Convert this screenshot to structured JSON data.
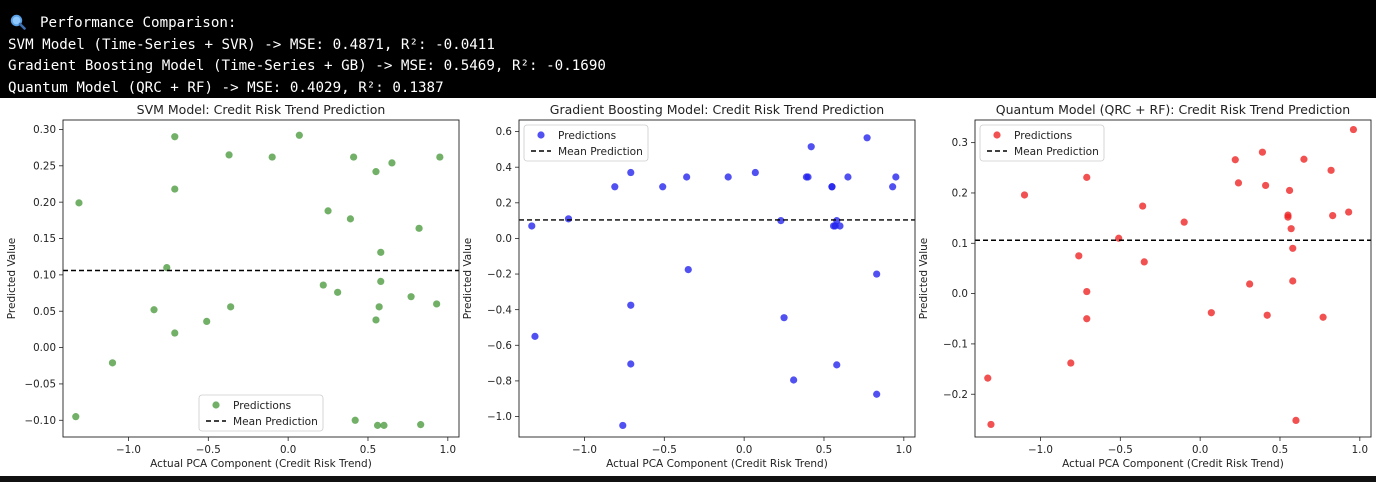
{
  "console": {
    "icon": "magnifier-icon",
    "lines": [
      "Performance Comparison:",
      "SVM Model (Time-Series + SVR) -> MSE: 0.4871, R²: -0.0411",
      "Gradient Boosting Model (Time-Series + GB) -> MSE: 0.5469, R²: -0.1690",
      "Quantum Model (QRC + RF) -> MSE: 0.4029, R²: 0.1387"
    ]
  },
  "chart_data": [
    {
      "type": "scatter",
      "title": "SVM Model: Credit Risk Trend Prediction",
      "xlabel": "Actual PCA Component (Credit Risk Trend)",
      "ylabel": "Predicted Value",
      "xlim": [
        -1.41,
        1.07
      ],
      "ylim": [
        -0.123,
        0.313
      ],
      "xticks": [
        -1.0,
        -0.5,
        0.0,
        0.5,
        1.0
      ],
      "xtick_labels": [
        "−1.0",
        "−0.5",
        "0.0",
        "0.5",
        "1.0"
      ],
      "yticks": [
        -0.1,
        -0.05,
        0.0,
        0.05,
        0.1,
        0.15,
        0.2,
        0.25,
        0.3
      ],
      "ytick_labels": [
        "−0.10",
        "−0.05",
        "0.00",
        "0.05",
        "0.10",
        "0.15",
        "0.20",
        "0.25",
        "0.30"
      ],
      "color": "#4a9a3d",
      "mean_line": 0.106,
      "legend": {
        "placement": "lower-center",
        "entries": [
          "Predictions",
          "Mean Prediction"
        ]
      },
      "points": [
        [
          -1.33,
          -0.095
        ],
        [
          -1.31,
          0.199
        ],
        [
          -1.1,
          -0.021
        ],
        [
          -0.84,
          0.052
        ],
        [
          -0.76,
          0.11
        ],
        [
          -0.71,
          0.29
        ],
        [
          -0.71,
          0.218
        ],
        [
          -0.71,
          0.02
        ],
        [
          -0.51,
          0.036
        ],
        [
          -0.37,
          0.265
        ],
        [
          -0.36,
          0.056
        ],
        [
          -0.1,
          0.262
        ],
        [
          0.07,
          0.292
        ],
        [
          0.22,
          0.086
        ],
        [
          0.25,
          0.188
        ],
        [
          0.31,
          0.076
        ],
        [
          0.39,
          0.177
        ],
        [
          0.41,
          0.262
        ],
        [
          0.42,
          -0.1
        ],
        [
          0.55,
          0.242
        ],
        [
          0.55,
          0.038
        ],
        [
          0.57,
          0.056
        ],
        [
          0.58,
          0.131
        ],
        [
          0.58,
          0.091
        ],
        [
          0.56,
          -0.107
        ],
        [
          0.6,
          -0.107
        ],
        [
          0.65,
          0.254
        ],
        [
          0.77,
          0.07
        ],
        [
          0.82,
          0.164
        ],
        [
          0.83,
          -0.106
        ],
        [
          0.93,
          0.06
        ],
        [
          0.95,
          0.262
        ]
      ]
    },
    {
      "type": "scatter",
      "title": "Gradient Boosting Model: Credit Risk Trend Prediction",
      "xlabel": "Actual PCA Component (Credit Risk Trend)",
      "ylabel": "Predicted Value",
      "xlim": [
        -1.41,
        1.07
      ],
      "ylim": [
        -1.115,
        0.665
      ],
      "xticks": [
        -1.0,
        -0.5,
        0.0,
        0.5,
        1.0
      ],
      "xtick_labels": [
        "−1.0",
        "−0.5",
        "0.0",
        "0.5",
        "1.0"
      ],
      "yticks": [
        -1.0,
        -0.8,
        -0.6,
        -0.4,
        -0.2,
        0.0,
        0.2,
        0.4,
        0.6
      ],
      "ytick_labels": [
        "−1.0",
        "−0.8",
        "−0.6",
        "−0.4",
        "−0.2",
        "0.0",
        "0.2",
        "0.4",
        "0.6"
      ],
      "color": "#2020ee",
      "mean_line": 0.104,
      "legend": {
        "placement": "upper-left",
        "entries": [
          "Predictions",
          "Mean Prediction"
        ]
      },
      "points": [
        [
          -1.33,
          0.07
        ],
        [
          -1.31,
          -0.55
        ],
        [
          -1.1,
          0.11
        ],
        [
          -0.81,
          0.29
        ],
        [
          -0.76,
          -1.05
        ],
        [
          -0.71,
          0.37
        ],
        [
          -0.71,
          -0.375
        ],
        [
          -0.71,
          -0.705
        ],
        [
          -0.51,
          0.29
        ],
        [
          -0.36,
          0.345
        ],
        [
          -0.35,
          -0.175
        ],
        [
          -0.1,
          0.345
        ],
        [
          0.07,
          0.37
        ],
        [
          0.23,
          0.1
        ],
        [
          0.25,
          -0.445
        ],
        [
          0.31,
          -0.795
        ],
        [
          0.39,
          0.345
        ],
        [
          0.4,
          0.345
        ],
        [
          0.42,
          0.515
        ],
        [
          0.55,
          0.29
        ],
        [
          0.55,
          0.29
        ],
        [
          0.56,
          0.07
        ],
        [
          0.57,
          0.07
        ],
        [
          0.58,
          0.1
        ],
        [
          0.58,
          -0.71
        ],
        [
          0.6,
          0.07
        ],
        [
          0.65,
          0.345
        ],
        [
          0.77,
          0.565
        ],
        [
          0.83,
          -0.2
        ],
        [
          0.83,
          -0.875
        ],
        [
          0.93,
          0.29
        ],
        [
          0.95,
          0.345
        ]
      ]
    },
    {
      "type": "scatter",
      "title": "Quantum Model (QRC + RF): Credit Risk Trend Prediction",
      "xlabel": "Actual PCA Component (Credit Risk Trend)",
      "ylabel": "Predicted Value",
      "xlim": [
        -1.41,
        1.07
      ],
      "ylim": [
        -0.285,
        0.345
      ],
      "xticks": [
        -1.0,
        -0.5,
        0.0,
        0.5,
        1.0
      ],
      "xtick_labels": [
        "−1.0",
        "−0.5",
        "0.0",
        "0.5",
        "1.0"
      ],
      "yticks": [
        -0.2,
        -0.1,
        0.0,
        0.1,
        0.2,
        0.3
      ],
      "ytick_labels": [
        "−0.2",
        "−0.1",
        "0.0",
        "0.1",
        "0.2",
        "0.3"
      ],
      "color": "#ee2020",
      "mean_line": 0.106,
      "legend": {
        "placement": "upper-left",
        "entries": [
          "Predictions",
          "Mean Prediction"
        ]
      },
      "points": [
        [
          -1.33,
          -0.168
        ],
        [
          -1.31,
          -0.26
        ],
        [
          -1.1,
          0.196
        ],
        [
          -0.81,
          -0.138
        ],
        [
          -0.76,
          0.075
        ],
        [
          -0.71,
          0.231
        ],
        [
          -0.71,
          0.004
        ],
        [
          -0.71,
          -0.05
        ],
        [
          -0.51,
          0.11
        ],
        [
          -0.36,
          0.174
        ],
        [
          -0.35,
          0.063
        ],
        [
          -0.1,
          0.142
        ],
        [
          0.07,
          -0.038
        ],
        [
          0.22,
          0.266
        ],
        [
          0.24,
          0.22
        ],
        [
          0.31,
          0.019
        ],
        [
          0.39,
          0.281
        ],
        [
          0.41,
          0.215
        ],
        [
          0.42,
          -0.043
        ],
        [
          0.55,
          0.152
        ],
        [
          0.55,
          0.156
        ],
        [
          0.56,
          0.205
        ],
        [
          0.57,
          0.129
        ],
        [
          0.58,
          0.09
        ],
        [
          0.58,
          0.025
        ],
        [
          0.6,
          -0.252
        ],
        [
          0.65,
          0.267
        ],
        [
          0.77,
          -0.047
        ],
        [
          0.82,
          0.245
        ],
        [
          0.83,
          0.155
        ],
        [
          0.93,
          0.162
        ],
        [
          0.96,
          0.326
        ]
      ]
    }
  ]
}
